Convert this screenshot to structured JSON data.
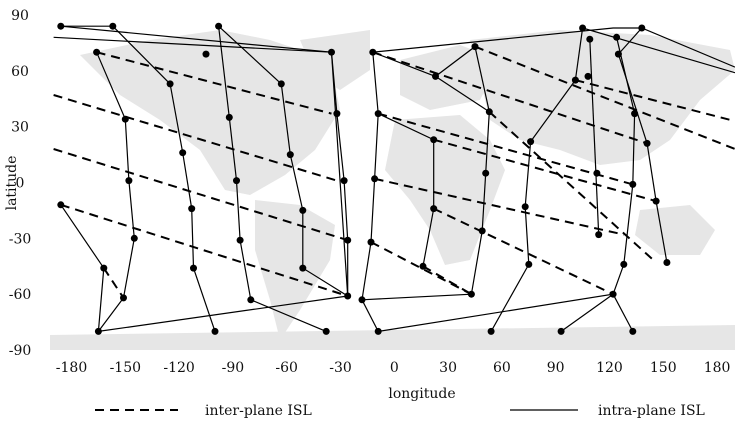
{
  "chart_data": {
    "type": "line",
    "xlabel": "longitude",
    "ylabel": "latitude",
    "xlim": [
      -192,
      190
    ],
    "ylim": [
      -90,
      90
    ],
    "xticks": [
      -180,
      -150,
      -120,
      -90,
      -60,
      -30,
      0,
      30,
      60,
      90,
      120,
      150,
      180
    ],
    "yticks": [
      -90,
      -60,
      -30,
      0,
      30,
      60,
      90
    ],
    "background": "world map (light gray landmasses)",
    "grid": false,
    "legend": {
      "placement": "bottom",
      "entries": [
        {
          "label": "inter-plane ISL",
          "style": "dashed"
        },
        {
          "label": "intra-plane ISL",
          "style": "solid"
        }
      ]
    },
    "colors": {
      "links": "#000000",
      "land": "#e6e6e6"
    },
    "satellites": [
      [
        -186,
        84
      ],
      [
        -166,
        70
      ],
      [
        -150,
        34
      ],
      [
        -148,
        1
      ],
      [
        -145,
        -30
      ],
      [
        -162,
        -46
      ],
      [
        -165,
        -80
      ],
      [
        -157,
        84
      ],
      [
        -125,
        53
      ],
      [
        -118,
        16
      ],
      [
        -113,
        -14
      ],
      [
        -112,
        -46
      ],
      [
        -151,
        -62
      ],
      [
        -98,
        84
      ],
      [
        -105,
        69
      ],
      [
        -92,
        35
      ],
      [
        -88,
        1
      ],
      [
        -86,
        -31
      ],
      [
        -80,
        -63
      ],
      [
        -100,
        -80
      ],
      [
        -63,
        53
      ],
      [
        -58,
        15
      ],
      [
        -51,
        -15
      ],
      [
        -51,
        -46
      ],
      [
        -26,
        -61
      ],
      [
        -38,
        -80
      ],
      [
        -35,
        70
      ],
      [
        -32,
        37
      ],
      [
        -28,
        1
      ],
      [
        -26,
        -31
      ],
      [
        -186,
        -12
      ],
      [
        -18,
        -63
      ],
      [
        -9,
        -80
      ],
      [
        -12,
        70
      ],
      [
        -9,
        37
      ],
      [
        -11,
        2
      ],
      [
        -13,
        -32
      ],
      [
        22,
        23
      ],
      [
        22,
        -14
      ],
      [
        16,
        -45
      ],
      [
        23,
        57
      ],
      [
        45,
        73
      ],
      [
        53,
        38
      ],
      [
        51,
        5
      ],
      [
        49,
        -26
      ],
      [
        43,
        -60
      ],
      [
        54,
        -80
      ],
      [
        76,
        22
      ],
      [
        73,
        -13
      ],
      [
        75,
        -44
      ],
      [
        93,
        -80
      ],
      [
        101,
        55
      ],
      [
        105,
        83
      ],
      [
        108,
        57
      ],
      [
        113,
        5
      ],
      [
        114,
        -28
      ],
      [
        125,
        69
      ],
      [
        138,
        83
      ],
      [
        109,
        77
      ],
      [
        124,
        78
      ],
      [
        134,
        37
      ],
      [
        133,
        -1
      ],
      [
        128,
        -44
      ],
      [
        122,
        -60
      ],
      [
        133,
        -80
      ],
      [
        141,
        21
      ],
      [
        146,
        -10
      ],
      [
        152,
        -43
      ]
    ],
    "intra_plane_links": [
      [
        [
          -186,
          84
        ],
        [
          -157,
          84
        ]
      ],
      [
        [
          -166,
          70
        ],
        [
          -150,
          34
        ],
        [
          -148,
          1
        ],
        [
          -145,
          -30
        ],
        [
          -151,
          -62
        ],
        [
          -165,
          -80
        ]
      ],
      [
        [
          -157,
          84
        ],
        [
          -125,
          53
        ],
        [
          -118,
          16
        ],
        [
          -113,
          -14
        ],
        [
          -112,
          -46
        ],
        [
          -100,
          -80
        ]
      ],
      [
        [
          -98,
          84
        ],
        [
          -92,
          35
        ],
        [
          -88,
          1
        ],
        [
          -86,
          -31
        ],
        [
          -80,
          -63
        ],
        [
          -38,
          -80
        ]
      ],
      [
        [
          -186,
          84
        ],
        [
          -35,
          70
        ]
      ],
      [
        [
          -98,
          84
        ],
        [
          -63,
          53
        ],
        [
          -58,
          15
        ],
        [
          -51,
          -15
        ],
        [
          -51,
          -46
        ],
        [
          -26,
          -61
        ],
        [
          -35,
          70
        ]
      ],
      [
        [
          -190,
          78
        ],
        [
          -35,
          70
        ]
      ],
      [
        [
          -35,
          70
        ],
        [
          -32,
          37
        ],
        [
          -28,
          1
        ],
        [
          -26,
          -31
        ],
        [
          -26,
          -61
        ]
      ],
      [
        [
          -186,
          -12
        ],
        [
          -162,
          -46
        ],
        [
          -165,
          -80
        ]
      ],
      [
        [
          -165,
          -80
        ],
        [
          -26,
          -61
        ]
      ],
      [
        [
          -18,
          -63
        ],
        [
          -9,
          -80
        ]
      ],
      [
        [
          -12,
          70
        ],
        [
          -9,
          37
        ],
        [
          -11,
          2
        ],
        [
          -13,
          -32
        ],
        [
          -18,
          -63
        ]
      ],
      [
        [
          -12,
          70
        ],
        [
          23,
          57
        ],
        [
          45,
          73
        ],
        [
          53,
          38
        ],
        [
          51,
          5
        ],
        [
          49,
          -26
        ],
        [
          43,
          -60
        ],
        [
          -18,
          -63
        ]
      ],
      [
        [
          -12,
          70
        ],
        [
          122,
          83
        ],
        [
          138,
          83
        ],
        [
          190,
          62
        ]
      ],
      [
        [
          -9,
          37
        ],
        [
          22,
          23
        ],
        [
          22,
          -14
        ],
        [
          16,
          -45
        ]
      ],
      [
        [
          23,
          57
        ],
        [
          53,
          38
        ]
      ],
      [
        [
          101,
          55
        ],
        [
          76,
          22
        ],
        [
          73,
          -13
        ],
        [
          75,
          -44
        ],
        [
          54,
          -80
        ]
      ],
      [
        [
          105,
          83
        ],
        [
          101,
          55
        ]
      ],
      [
        [
          105,
          83
        ],
        [
          190,
          59
        ]
      ],
      [
        [
          109,
          77
        ],
        [
          114,
          -28
        ]
      ],
      [
        [
          124,
          78
        ],
        [
          134,
          37
        ],
        [
          133,
          -1
        ],
        [
          128,
          -44
        ],
        [
          122,
          -60
        ],
        [
          93,
          -80
        ]
      ],
      [
        [
          -9,
          -80
        ],
        [
          122,
          -60
        ],
        [
          133,
          -80
        ]
      ],
      [
        [
          141,
          21
        ],
        [
          146,
          -10
        ],
        [
          152,
          -43
        ]
      ],
      [
        [
          125,
          69
        ],
        [
          141,
          21
        ]
      ],
      [
        [
          138,
          83
        ],
        [
          125,
          69
        ]
      ]
    ],
    "inter_plane_links": [
      [
        [
          -166,
          70
        ],
        [
          -35,
          37
        ]
      ],
      [
        [
          -190,
          47
        ],
        [
          -32,
          1
        ]
      ],
      [
        [
          -190,
          18
        ],
        [
          -26,
          -31
        ]
      ],
      [
        [
          -186,
          -12
        ],
        [
          -26,
          -61
        ]
      ],
      [
        [
          -162,
          -46
        ],
        [
          -151,
          -62
        ]
      ],
      [
        [
          -12,
          70
        ],
        [
          141,
          21
        ]
      ],
      [
        [
          -9,
          37
        ],
        [
          133,
          -1
        ]
      ],
      [
        [
          -11,
          2
        ],
        [
          128,
          -28
        ]
      ],
      [
        [
          -13,
          -32
        ],
        [
          43,
          -60
        ]
      ],
      [
        [
          16,
          -45
        ],
        [
          43,
          -60
        ]
      ],
      [
        [
          45,
          73
        ],
        [
          190,
          18
        ]
      ],
      [
        [
          22,
          -14
        ],
        [
          122,
          -60
        ]
      ],
      [
        [
          22,
          23
        ],
        [
          146,
          -10
        ]
      ],
      [
        [
          53,
          38
        ],
        [
          146,
          -43
        ]
      ],
      [
        [
          101,
          55
        ],
        [
          190,
          33
        ]
      ]
    ]
  }
}
